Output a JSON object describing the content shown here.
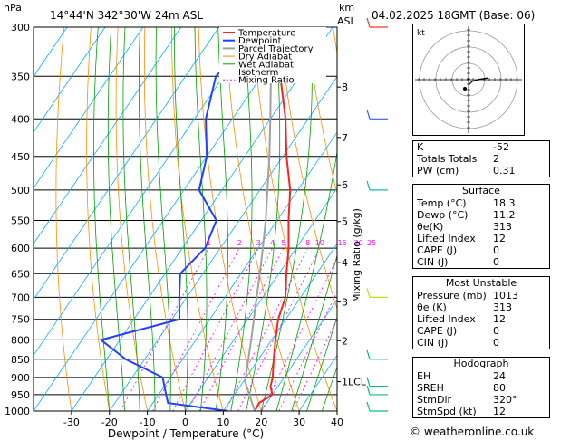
{
  "header": {
    "hpa_label": "hPa",
    "location": "14°44'N  342°30'W  24m  ASL",
    "km_label": "km",
    "asl_label": "ASL",
    "datetime": "04.02.2025  18GMT  (Base: 06)"
  },
  "colors": {
    "temperature": "#ff2020",
    "dewpoint": "#2040ff",
    "parcel": "#a0a0a0",
    "dry_adiabat": "#ff8c00",
    "wet_adiabat": "#00a000",
    "isotherm": "#00b0ff",
    "mixing_ratio": "#ff00ff",
    "wind": "#00c0c0"
  },
  "chart_data": {
    "type": "line",
    "title": "",
    "xlabel": "Dewpoint / Temperature (°C)",
    "ylabel": "hPa",
    "y2label": "Mixing Ratio (g/kg)",
    "x_ticks": [
      "-30",
      "-20",
      "-10",
      "0",
      "10",
      "20",
      "30",
      "40"
    ],
    "y_ticks": [
      "300",
      "350",
      "400",
      "450",
      "500",
      "550",
      "600",
      "650",
      "700",
      "750",
      "800",
      "850",
      "900",
      "950",
      "1000"
    ],
    "ylim": [
      1000,
      300
    ],
    "xlim": [
      -40,
      40
    ],
    "skew": "skew-T log-P",
    "legend_position": "top-left",
    "legend": [
      "Temperature",
      "Dewpoint",
      "Parcel Trajectory",
      "Dry Adiabat",
      "Wet Adiabat",
      "Isotherm",
      "Mixing Ratio"
    ],
    "km_ticks": [
      {
        "label": "8",
        "p": 362
      },
      {
        "label": "7",
        "p": 424
      },
      {
        "label": "6",
        "p": 492
      },
      {
        "label": "5",
        "p": 552
      },
      {
        "label": "4",
        "p": 628
      },
      {
        "label": "3",
        "p": 710
      },
      {
        "label": "2",
        "p": 802
      },
      {
        "label": "1LCL",
        "p": 912
      }
    ],
    "mixing_ratio_labels": [
      "1",
      "2",
      "3",
      "4",
      "5",
      "8",
      "10",
      "15",
      "20",
      "25"
    ],
    "series": [
      {
        "name": "Temperature",
        "points": [
          [
            1000,
            18.3
          ],
          [
            975,
            18
          ],
          [
            950,
            20
          ],
          [
            925,
            18
          ],
          [
            900,
            17
          ],
          [
            850,
            14
          ],
          [
            800,
            11
          ],
          [
            750,
            8
          ],
          [
            700,
            6
          ],
          [
            650,
            2
          ],
          [
            600,
            -2
          ],
          [
            550,
            -7
          ],
          [
            500,
            -12
          ],
          [
            450,
            -19
          ],
          [
            400,
            -26
          ],
          [
            350,
            -35
          ],
          [
            300,
            -44
          ]
        ]
      },
      {
        "name": "Dewpoint",
        "points": [
          [
            1000,
            11.2
          ],
          [
            975,
            -6
          ],
          [
            950,
            -8
          ],
          [
            900,
            -12
          ],
          [
            850,
            -25
          ],
          [
            800,
            -35
          ],
          [
            750,
            -18
          ],
          [
            700,
            -22
          ],
          [
            650,
            -26
          ],
          [
            600,
            -24
          ],
          [
            550,
            -26
          ],
          [
            500,
            -36
          ],
          [
            450,
            -40
          ],
          [
            400,
            -47
          ],
          [
            350,
            -52
          ],
          [
            300,
            -48
          ]
        ]
      },
      {
        "name": "Parcel Trajectory",
        "points": [
          [
            1000,
            18.3
          ],
          [
            912,
            10.5
          ],
          [
            850,
            7.3
          ],
          [
            800,
            4.6
          ],
          [
            750,
            1.6
          ],
          [
            700,
            -1.6
          ],
          [
            650,
            -5
          ],
          [
            600,
            -8.8
          ],
          [
            550,
            -13
          ],
          [
            500,
            -18
          ],
          [
            450,
            -23.5
          ],
          [
            400,
            -30
          ],
          [
            350,
            -37.5
          ],
          [
            300,
            -46
          ]
        ]
      }
    ]
  },
  "hodograph": {
    "label": "kt",
    "rings": [
      "10",
      "20",
      "30"
    ]
  },
  "indices": {
    "rows": [
      {
        "k": "K",
        "v": "-52"
      },
      {
        "k": "Totals Totals",
        "v": "2"
      },
      {
        "k": "PW (cm)",
        "v": "0.31"
      }
    ]
  },
  "surface": {
    "title": "Surface",
    "rows": [
      {
        "k": "Temp (°C)",
        "v": "18.3"
      },
      {
        "k": "Dewp (°C)",
        "v": "11.2"
      },
      {
        "k": "θe(K)",
        "v": "313"
      },
      {
        "k": "Lifted Index",
        "v": "12"
      },
      {
        "k": "CAPE (J)",
        "v": "0"
      },
      {
        "k": "CIN (J)",
        "v": "0"
      }
    ]
  },
  "most_unstable": {
    "title": "Most Unstable",
    "rows": [
      {
        "k": "Pressure (mb)",
        "v": "1013"
      },
      {
        "k": "θe (K)",
        "v": "313"
      },
      {
        "k": "Lifted Index",
        "v": "12"
      },
      {
        "k": "CAPE (J)",
        "v": "0"
      },
      {
        "k": "CIN (J)",
        "v": "0"
      }
    ]
  },
  "hodo_table": {
    "title": "Hodograph",
    "rows": [
      {
        "k": "EH",
        "v": "24"
      },
      {
        "k": "SREH",
        "v": "80"
      },
      {
        "k": "StmDir",
        "v": "320°"
      },
      {
        "k": "StmSpd (kt)",
        "v": "12"
      }
    ]
  },
  "credit": "© weatheronline.co.uk"
}
